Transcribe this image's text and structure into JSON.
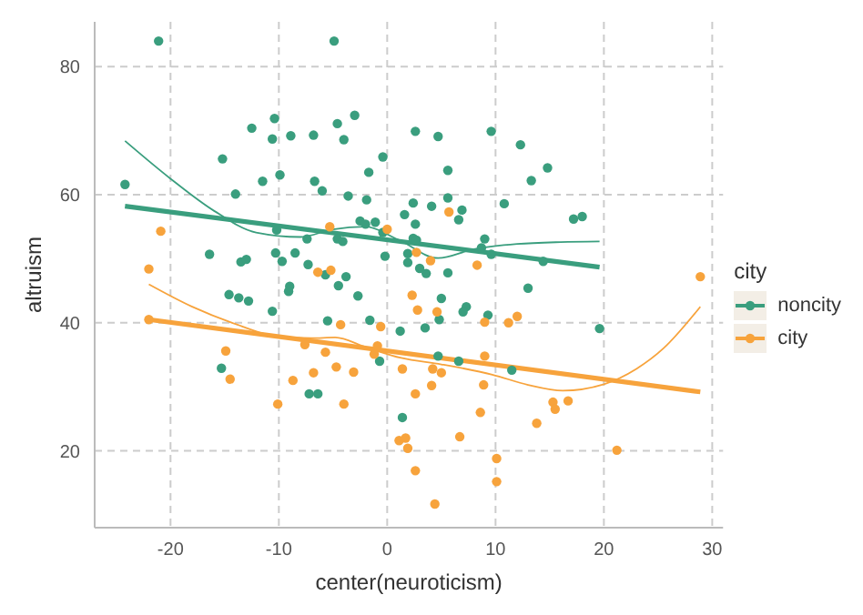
{
  "chart_data": {
    "type": "scatter",
    "xlabel": "center(neuroticism)",
    "ylabel": "altruism",
    "legend_title": "city",
    "legend": "right",
    "grid": true,
    "marker": "circle",
    "xlim": [
      -27,
      31
    ],
    "ylim": [
      8,
      87
    ],
    "xticks": [
      -20,
      -10,
      0,
      10,
      20,
      30
    ],
    "yticks": [
      20,
      40,
      60,
      80
    ],
    "series": [
      {
        "name": "noncity",
        "color": "#3a9e7e",
        "x": [
          -21.1,
          -4.9,
          -24.2,
          -15.2,
          -12.5,
          -10.4,
          -10.6,
          -8.9,
          -6.8,
          -4.6,
          -4.0,
          -3.0,
          -14.0,
          -11.5,
          -9.9,
          -6.7,
          -6.0,
          -3.6,
          -1.9,
          -1.7,
          -0.4,
          -2.5,
          -2.0,
          -1.1,
          -10.2,
          -4.6,
          -4.1,
          -7.4,
          -0.4,
          -16.4,
          -13.5,
          -13.0,
          -10.3,
          -9.7,
          -8.5,
          -7.3,
          -5.7,
          -3.8,
          -0.2,
          1.6,
          1.9,
          1.9,
          2.6,
          4.7,
          9.6,
          12.3,
          5.6,
          14.8,
          13.3,
          5.6,
          2.4,
          4.1,
          6.9,
          10.8,
          17.2,
          18.0,
          2.6,
          6.6,
          2.4,
          2.7,
          3.0,
          3.6,
          5.6,
          8.7,
          9.0,
          9.6,
          14.4,
          -4.5,
          -2.7,
          -14.6,
          -13.7,
          -12.8,
          -9.0,
          -9.1,
          -10.6,
          -5.5,
          -1.6,
          1.2,
          -0.7,
          -15.3,
          -7.2,
          -6.4,
          1.4,
          13.0,
          7.3,
          7.0,
          9.3,
          5.0,
          4.8,
          3.5,
          6.6,
          4.7,
          11.5,
          19.6
        ],
        "values": [
          84,
          84,
          61.6,
          65.6,
          70.4,
          71.9,
          68.7,
          69.2,
          69.3,
          71.1,
          68.6,
          72.4,
          60.1,
          62.1,
          63.1,
          62.1,
          60.6,
          59.8,
          59.2,
          63.5,
          65.9,
          55.9,
          55.4,
          55.7,
          54.5,
          53.1,
          52.7,
          53.1,
          54.1,
          50.7,
          49.5,
          49.9,
          50.9,
          49.6,
          50.9,
          49.1,
          47.5,
          47.2,
          50.4,
          56.9,
          50.8,
          49.4,
          69.9,
          69.1,
          69.9,
          67.8,
          63.8,
          64.2,
          62.2,
          59.5,
          58.7,
          58.2,
          57.6,
          58.6,
          56.2,
          56.6,
          55.4,
          56.1,
          53.2,
          52.9,
          48.5,
          47.7,
          47.8,
          51.7,
          53.1,
          50.7,
          49.6,
          45.8,
          44.2,
          44.4,
          43.9,
          43.4,
          45.7,
          44.9,
          41.8,
          40.3,
          40.4,
          38.7,
          34.0,
          32.9,
          28.9,
          28.9,
          25.2,
          45.4,
          42.5,
          41.7,
          41.2,
          43.8,
          40.5,
          39.2,
          34.0,
          34.8,
          32.6,
          39.1
        ]
      },
      {
        "name": "city",
        "color": "#f7a33c",
        "x": [
          -20.9,
          -22.0,
          -5.3,
          0.0,
          -6.4,
          -5.2,
          5.7,
          2.7,
          4.0,
          8.3,
          28.9,
          -22.0,
          -4.3,
          -0.6,
          -7.6,
          -5.7,
          -0.9,
          -1.2,
          -14.9,
          -14.5,
          -6.8,
          -4.7,
          -3.1,
          1.4,
          -8.7,
          -10.1,
          -4.0,
          1.1,
          1.7,
          1.9,
          2.3,
          2.8,
          4.6,
          9.0,
          11.2,
          12.0,
          9.0,
          4.2,
          5.0,
          4.1,
          2.6,
          8.9,
          15.3,
          15.5,
          16.7,
          8.6,
          13.8,
          6.7,
          21.2,
          2.6,
          10.1,
          10.1,
          4.4
        ],
        "values": [
          54.3,
          48.4,
          55.0,
          54.6,
          47.9,
          48.2,
          57.3,
          51.0,
          49.7,
          49.0,
          47.2,
          40.5,
          39.7,
          39.4,
          36.6,
          35.4,
          36.4,
          35.1,
          35.6,
          31.2,
          32.2,
          33.1,
          32.3,
          32.8,
          31.0,
          27.3,
          27.3,
          21.6,
          22.0,
          20.4,
          44.3,
          42.0,
          41.7,
          40.1,
          40.0,
          41.0,
          34.8,
          32.8,
          32.2,
          30.2,
          28.9,
          30.3,
          27.6,
          26.5,
          27.8,
          26.0,
          24.3,
          22.2,
          20.1,
          16.9,
          18.8,
          15.2,
          11.7
        ]
      },
      {
        "type": "line",
        "marker": "none",
        "color": "#3a9e7e",
        "x": [
          -24.2,
          -20,
          -16,
          -12.1,
          -8,
          -5,
          -2,
          1,
          4.7,
          8,
          12,
          16,
          19.6
        ],
        "values": [
          68.4,
          62.5,
          57.5,
          54.1,
          53.4,
          54.6,
          55.0,
          53,
          50.1,
          51.5,
          52.3,
          52.6,
          52.7
        ]
      },
      {
        "type": "line",
        "marker": "none",
        "color": "#3a9e7e",
        "x": [
          -24.2,
          19.6
        ],
        "values": [
          58.2,
          48.7
        ]
      },
      {
        "type": "line",
        "marker": "none",
        "color": "#f7a33c",
        "x": [
          -22,
          -18,
          -14,
          -10,
          -7,
          -4.8,
          -2,
          1.3,
          5,
          9.7,
          13,
          16.2,
          20,
          23,
          25.5,
          28.9
        ],
        "values": [
          46.0,
          42.5,
          39.8,
          37.8,
          37.6,
          37.7,
          36.2,
          34.5,
          33.5,
          31.9,
          30.3,
          29.4,
          30.4,
          32.8,
          36,
          42.5
        ]
      },
      {
        "type": "line",
        "marker": "none",
        "color": "#f7a33c",
        "x": [
          -22,
          28.9
        ],
        "values": [
          40.5,
          29.2
        ]
      }
    ]
  }
}
